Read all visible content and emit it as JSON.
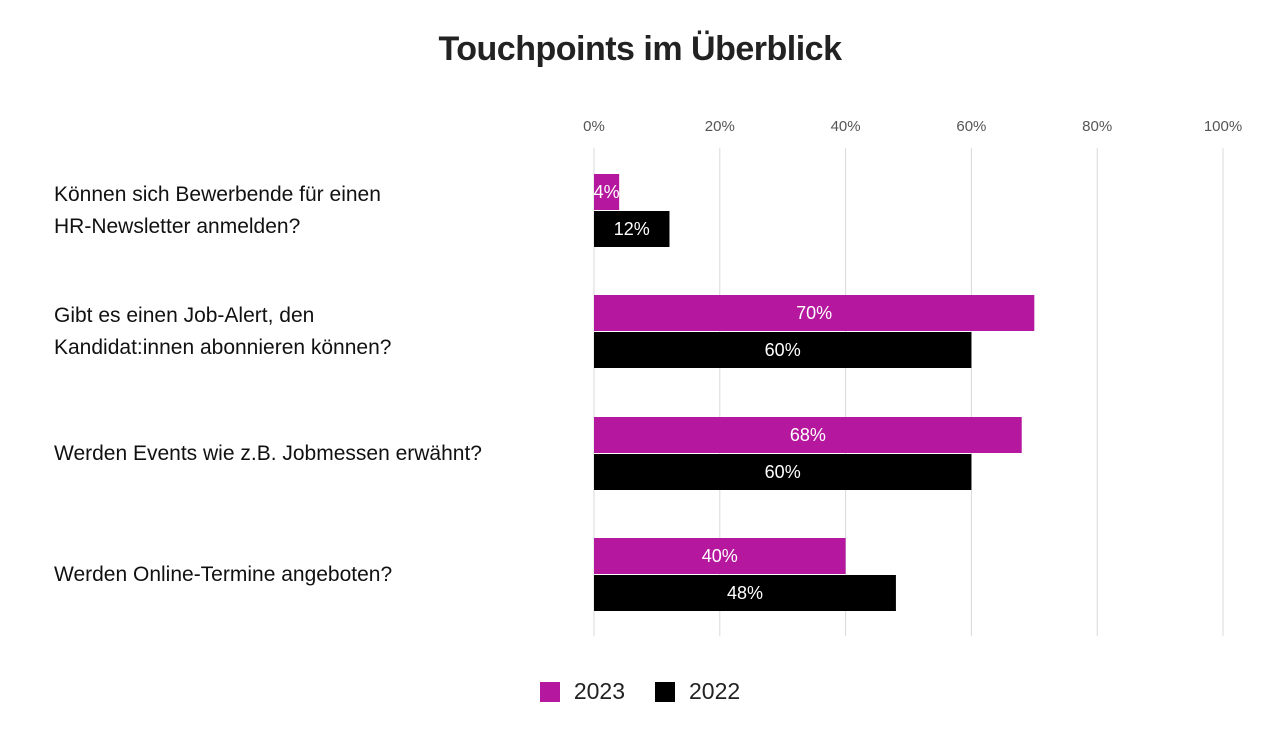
{
  "chart_data": {
    "type": "bar",
    "orientation": "horizontal",
    "title": "Touchpoints im Überblick",
    "categories": [
      "Können sich Bewerbende für einen\nHR-Newsletter anmelden?",
      "Gibt es einen Job-Alert, den\nKandidat:innen abonnieren können?",
      "Werden Events wie z.B. Jobmessen erwähnt?",
      "Werden Online-Termine angeboten?"
    ],
    "series": [
      {
        "name": "2023",
        "color": "#b5179e",
        "values": [
          4,
          70,
          68,
          40
        ],
        "labels": [
          "4%",
          "70%",
          "68%",
          "40%"
        ]
      },
      {
        "name": "2022",
        "color": "#000000",
        "values": [
          12,
          60,
          60,
          48
        ],
        "labels": [
          "12%",
          "60%",
          "60%",
          "48%"
        ]
      }
    ],
    "xlim": [
      0,
      100
    ],
    "xticks": [
      "0%",
      "20%",
      "40%",
      "60%",
      "80%",
      "100%"
    ],
    "axis_position": "top",
    "grid": true,
    "legend_position": "bottom"
  }
}
